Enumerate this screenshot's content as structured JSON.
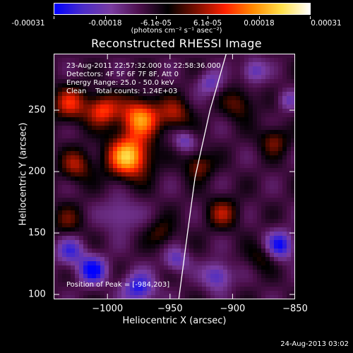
{
  "colorbar": {
    "tick_labels": [
      "-0.00031",
      "-0.00018",
      "-6.1e-05",
      "6.1e-05",
      "0.00018",
      "0.00031"
    ],
    "units": "(photons cm⁻² s⁻¹ asec⁻²)",
    "colors": [
      "#0000ff",
      "#4b2cc8",
      "#7a3ca0",
      "#4b0f4b",
      "#000000",
      "#7a0f00",
      "#ff2000",
      "#ff8a00",
      "#ffe04a",
      "#ffffff"
    ]
  },
  "title": "Reconstructed RHESSI Image",
  "info": {
    "time_range": "23-Aug-2011 22:57:32.000 to 22:58:36.000",
    "detectors": "Detectors: 4F 5F 6F 7F 8F, Att 0",
    "energy": "Energy Range: 25.0 - 50.0 keV",
    "method": "Clean    Total counts: 1.24E+03"
  },
  "peak": "Position of Peak = [-984,203]",
  "timestamp": "24-Aug-2013 03:02",
  "chart_data": {
    "type": "heatmap",
    "title": "Reconstructed RHESSI Image",
    "xlabel": "Heliocentric X (arcsec)",
    "ylabel": "Heliocentric Y (arcsec)",
    "xlim": [
      -1043,
      -850
    ],
    "ylim": [
      96,
      296
    ],
    "x_ticks": [
      -1000,
      -950,
      -900,
      -850
    ],
    "x_tick_labels": [
      "−1000",
      "−950",
      "−900",
      "−850"
    ],
    "y_ticks": [
      100,
      150,
      200,
      250
    ],
    "y_tick_labels": [
      "100",
      "150",
      "200",
      "250"
    ],
    "color_range": [
      -0.00031,
      0.00031
    ],
    "peak_position": [
      -984,
      203
    ],
    "limb": [
      [
        -943,
        96
      ],
      [
        -936,
        150
      ],
      [
        -930,
        195
      ],
      [
        -918,
        250
      ],
      [
        -905,
        296
      ]
    ],
    "sources": [
      {
        "x": -983,
        "y": 212,
        "sigma": 12,
        "amp": 0.00031
      },
      {
        "x": -974,
        "y": 244,
        "sigma": 11,
        "amp": 0.00026
      },
      {
        "x": -1004,
        "y": 250,
        "sigma": 9,
        "amp": 0.0002
      },
      {
        "x": -946,
        "y": 247,
        "sigma": 9,
        "amp": 0.00014
      },
      {
        "x": -1030,
        "y": 255,
        "sigma": 10,
        "amp": 0.00017
      },
      {
        "x": -1025,
        "y": 205,
        "sigma": 9,
        "amp": 0.00014
      },
      {
        "x": -927,
        "y": 205,
        "sigma": 8,
        "amp": 0.00013
      },
      {
        "x": -895,
        "y": 255,
        "sigma": 9,
        "amp": 0.00011
      },
      {
        "x": -867,
        "y": 225,
        "sigma": 8,
        "amp": 0.00012
      },
      {
        "x": -908,
        "y": 166,
        "sigma": 9,
        "amp": 0.00013
      },
      {
        "x": -957,
        "y": 150,
        "sigma": 8,
        "amp": 9e-05
      },
      {
        "x": -1032,
        "y": 160,
        "sigma": 9,
        "amp": 9e-05
      },
      {
        "x": -877,
        "y": 130,
        "sigma": 8,
        "amp": 8e-05
      },
      {
        "x": -1012,
        "y": 120,
        "sigma": 8,
        "amp": -0.00022
      },
      {
        "x": -975,
        "y": 105,
        "sigma": 9,
        "amp": -0.00019
      },
      {
        "x": -862,
        "y": 140,
        "sigma": 8,
        "amp": -0.0002
      },
      {
        "x": -912,
        "y": 115,
        "sigma": 8,
        "amp": -0.00016
      },
      {
        "x": -945,
        "y": 128,
        "sigma": 7,
        "amp": -0.00013
      },
      {
        "x": -1030,
        "y": 135,
        "sigma": 8,
        "amp": -0.00015
      },
      {
        "x": -990,
        "y": 165,
        "sigma": 10,
        "amp": -0.0001
      },
      {
        "x": -883,
        "y": 282,
        "sigma": 7,
        "amp": -0.00014
      },
      {
        "x": -918,
        "y": 272,
        "sigma": 7,
        "amp": -0.00012
      },
      {
        "x": -938,
        "y": 225,
        "sigma": 6,
        "amp": -0.00012
      },
      {
        "x": -856,
        "y": 258,
        "sigma": 6,
        "amp": -0.0001
      }
    ]
  }
}
